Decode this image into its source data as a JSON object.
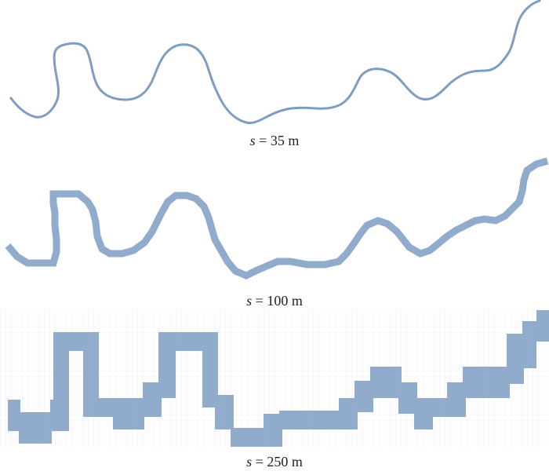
{
  "colors": {
    "river_fill": "#90abcb",
    "river_stroke": "#7f9dc0",
    "grid": "#a8bfd8"
  },
  "panels": [
    {
      "caption_var": "s",
      "caption_rest": " = 35 m"
    },
    {
      "caption_var": "s",
      "caption_rest": " = 100 m"
    },
    {
      "caption_var": "s",
      "caption_rest": " = 250 m"
    }
  ]
}
